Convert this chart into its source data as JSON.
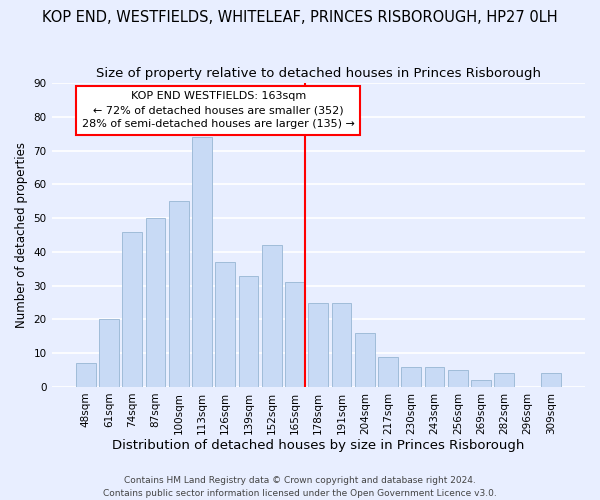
{
  "title": "KOP END, WESTFIELDS, WHITELEAF, PRINCES RISBOROUGH, HP27 0LH",
  "subtitle": "Size of property relative to detached houses in Princes Risborough",
  "xlabel": "Distribution of detached houses by size in Princes Risborough",
  "ylabel": "Number of detached properties",
  "bin_labels": [
    "48sqm",
    "61sqm",
    "74sqm",
    "87sqm",
    "100sqm",
    "113sqm",
    "126sqm",
    "139sqm",
    "152sqm",
    "165sqm",
    "178sqm",
    "191sqm",
    "204sqm",
    "217sqm",
    "230sqm",
    "243sqm",
    "256sqm",
    "269sqm",
    "282sqm",
    "296sqm",
    "309sqm"
  ],
  "bar_heights": [
    7,
    20,
    46,
    50,
    55,
    74,
    37,
    33,
    42,
    31,
    25,
    25,
    16,
    9,
    6,
    6,
    5,
    2,
    4,
    0,
    4
  ],
  "bar_color": "#c8daf5",
  "bar_edge_color": "#a0bcd8",
  "vline_x_index": 9,
  "vline_color": "red",
  "ylim": [
    0,
    90
  ],
  "yticks": [
    0,
    10,
    20,
    30,
    40,
    50,
    60,
    70,
    80,
    90
  ],
  "annotation_title": "KOP END WESTFIELDS: 163sqm",
  "annotation_line1": "← 72% of detached houses are smaller (352)",
  "annotation_line2": "28% of semi-detached houses are larger (135) →",
  "annotation_box_color": "white",
  "annotation_box_edge_color": "red",
  "footer_line1": "Contains HM Land Registry data © Crown copyright and database right 2024.",
  "footer_line2": "Contains public sector information licensed under the Open Government Licence v3.0.",
  "background_color": "#e8eeff",
  "grid_color": "white",
  "title_fontsize": 10.5,
  "subtitle_fontsize": 9.5,
  "xlabel_fontsize": 9.5,
  "ylabel_fontsize": 8.5,
  "tick_fontsize": 7.5,
  "annotation_fontsize": 8.0,
  "footer_fontsize": 6.5
}
